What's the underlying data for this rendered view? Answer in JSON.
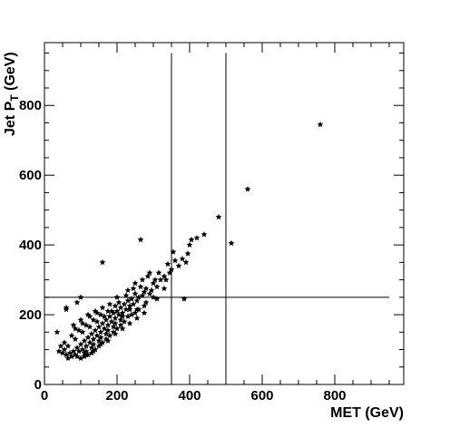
{
  "chart_data": {
    "type": "scatter",
    "title": "",
    "xlabel": "MET (GeV)",
    "ylabel_main": "Jet P",
    "ylabel_sub": "T",
    "ylabel_unit": " (GeV)",
    "xlim": [
      0,
      990
    ],
    "ylim": [
      0,
      980
    ],
    "x_major_ticks": [
      0,
      200,
      400,
      600,
      800
    ],
    "x_tick_labels": [
      "0",
      "200",
      "400",
      "600",
      "800"
    ],
    "y_major_ticks": [
      0,
      200,
      400,
      600,
      800
    ],
    "y_tick_labels": [
      "0",
      "200",
      "400",
      "600",
      "800"
    ],
    "grid": false,
    "marker": "star",
    "marker_color": "#000000",
    "cut_lines": [
      {
        "orientation": "vertical",
        "x": 350,
        "y_range": [
          0,
          950
        ]
      },
      {
        "orientation": "vertical",
        "x": 500,
        "y_range": [
          0,
          950
        ]
      },
      {
        "orientation": "horizontal",
        "y": 250,
        "x_range": [
          0,
          950
        ]
      }
    ],
    "points": [
      [
        760,
        745
      ],
      [
        560,
        560
      ],
      [
        515,
        405
      ],
      [
        480,
        480
      ],
      [
        440,
        430
      ],
      [
        420,
        420
      ],
      [
        405,
        415
      ],
      [
        400,
        400
      ],
      [
        385,
        245
      ],
      [
        395,
        375
      ],
      [
        390,
        350
      ],
      [
        380,
        360
      ],
      [
        370,
        340
      ],
      [
        360,
        355
      ],
      [
        355,
        380
      ],
      [
        350,
        330
      ],
      [
        345,
        320
      ],
      [
        340,
        345
      ],
      [
        335,
        300
      ],
      [
        330,
        310
      ],
      [
        320,
        300
      ],
      [
        315,
        320
      ],
      [
        310,
        280
      ],
      [
        305,
        300
      ],
      [
        300,
        290
      ],
      [
        295,
        270
      ],
      [
        290,
        260
      ],
      [
        285,
        310
      ],
      [
        280,
        275
      ],
      [
        275,
        265
      ],
      [
        270,
        255
      ],
      [
        265,
        280
      ],
      [
        260,
        250
      ],
      [
        255,
        240
      ],
      [
        250,
        260
      ],
      [
        245,
        230
      ],
      [
        240,
        245
      ],
      [
        235,
        225
      ],
      [
        230,
        240
      ],
      [
        225,
        215
      ],
      [
        220,
        230
      ],
      [
        215,
        205
      ],
      [
        210,
        220
      ],
      [
        205,
        200
      ],
      [
        200,
        210
      ],
      [
        195,
        190
      ],
      [
        190,
        205
      ],
      [
        185,
        180
      ],
      [
        180,
        195
      ],
      [
        175,
        170
      ],
      [
        170,
        185
      ],
      [
        165,
        160
      ],
      [
        160,
        175
      ],
      [
        155,
        150
      ],
      [
        150,
        165
      ],
      [
        145,
        140
      ],
      [
        140,
        155
      ],
      [
        135,
        130
      ],
      [
        130,
        145
      ],
      [
        125,
        120
      ],
      [
        120,
        135
      ],
      [
        115,
        110
      ],
      [
        110,
        125
      ],
      [
        105,
        100
      ],
      [
        100,
        115
      ],
      [
        95,
        95
      ],
      [
        90,
        105
      ],
      [
        85,
        85
      ],
      [
        80,
        95
      ],
      [
        75,
        80
      ],
      [
        70,
        90
      ],
      [
        65,
        75
      ],
      [
        60,
        85
      ],
      [
        55,
        100
      ],
      [
        50,
        90
      ],
      [
        45,
        110
      ],
      [
        40,
        95
      ],
      [
        35,
        150
      ],
      [
        60,
        220
      ],
      [
        90,
        235
      ],
      [
        160,
        350
      ],
      [
        265,
        415
      ],
      [
        60,
        215
      ],
      [
        100,
        250
      ],
      [
        330,
        275
      ],
      [
        310,
        245
      ],
      [
        250,
        205
      ],
      [
        230,
        195
      ],
      [
        220,
        180
      ],
      [
        210,
        170
      ],
      [
        200,
        160
      ],
      [
        190,
        150
      ],
      [
        180,
        140
      ],
      [
        170,
        130
      ],
      [
        160,
        120
      ],
      [
        150,
        110
      ],
      [
        140,
        100
      ],
      [
        130,
        90
      ],
      [
        120,
        85
      ],
      [
        110,
        80
      ],
      [
        100,
        75
      ],
      [
        240,
        200
      ],
      [
        260,
        215
      ],
      [
        280,
        235
      ],
      [
        300,
        250
      ],
      [
        275,
        225
      ],
      [
        255,
        215
      ],
      [
        235,
        215
      ],
      [
        215,
        195
      ],
      [
        195,
        175
      ],
      [
        175,
        155
      ],
      [
        155,
        135
      ],
      [
        135,
        115
      ],
      [
        115,
        95
      ],
      [
        185,
        210
      ],
      [
        165,
        195
      ],
      [
        145,
        180
      ],
      [
        125,
        165
      ],
      [
        105,
        150
      ],
      [
        85,
        130
      ],
      [
        65,
        110
      ],
      [
        205,
        235
      ],
      [
        225,
        255
      ],
      [
        245,
        275
      ],
      [
        195,
        225
      ],
      [
        175,
        210
      ],
      [
        155,
        200
      ],
      [
        135,
        185
      ],
      [
        115,
        170
      ],
      [
        95,
        155
      ],
      [
        75,
        140
      ],
      [
        55,
        120
      ],
      [
        210,
        185
      ],
      [
        190,
        165
      ],
      [
        170,
        145
      ],
      [
        150,
        125
      ],
      [
        130,
        105
      ],
      [
        110,
        90
      ],
      [
        90,
        80
      ],
      [
        145,
        205
      ],
      [
        125,
        195
      ],
      [
        105,
        175
      ],
      [
        85,
        160
      ],
      [
        180,
        230
      ],
      [
        160,
        220
      ],
      [
        140,
        210
      ],
      [
        120,
        200
      ],
      [
        100,
        185
      ],
      [
        80,
        170
      ],
      [
        200,
        250
      ],
      [
        230,
        270
      ],
      [
        250,
        290
      ],
      [
        270,
        300
      ],
      [
        290,
        320
      ],
      [
        215,
        160
      ],
      [
        235,
        175
      ],
      [
        255,
        190
      ],
      [
        275,
        205
      ],
      [
        195,
        145
      ],
      [
        175,
        125
      ],
      [
        155,
        115
      ],
      [
        135,
        95
      ],
      [
        115,
        85
      ]
    ]
  }
}
